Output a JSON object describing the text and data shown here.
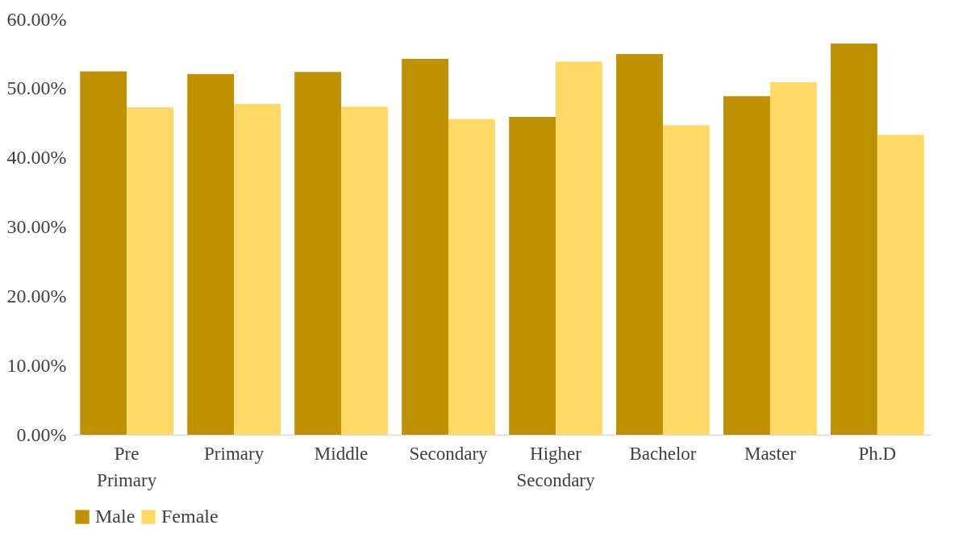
{
  "chart_data": {
    "type": "bar",
    "categories": [
      "Pre Primary",
      "Primary",
      "Middle",
      "Secondary",
      "Higher Secondary",
      "Bachelor",
      "Master",
      "Ph.D"
    ],
    "series": [
      {
        "name": "Male",
        "color": "#bf9000",
        "values": [
          52.5,
          52.1,
          52.4,
          54.3,
          45.9,
          55.0,
          48.9,
          56.5
        ]
      },
      {
        "name": "Female",
        "color": "#ffd966",
        "values": [
          47.3,
          47.8,
          47.4,
          45.6,
          53.9,
          44.7,
          50.9,
          43.3
        ]
      }
    ],
    "ylim": [
      0,
      60
    ],
    "yticks": [
      {
        "value": 0,
        "label": "0.00%"
      },
      {
        "value": 10,
        "label": "10.00%"
      },
      {
        "value": 20,
        "label": "20.00%"
      },
      {
        "value": 30,
        "label": "30.00%"
      },
      {
        "value": 40,
        "label": "40.00%"
      },
      {
        "value": 50,
        "label": "50.00%"
      },
      {
        "value": 60,
        "label": "60.00%"
      }
    ],
    "grid": false,
    "legend": "bottom"
  }
}
